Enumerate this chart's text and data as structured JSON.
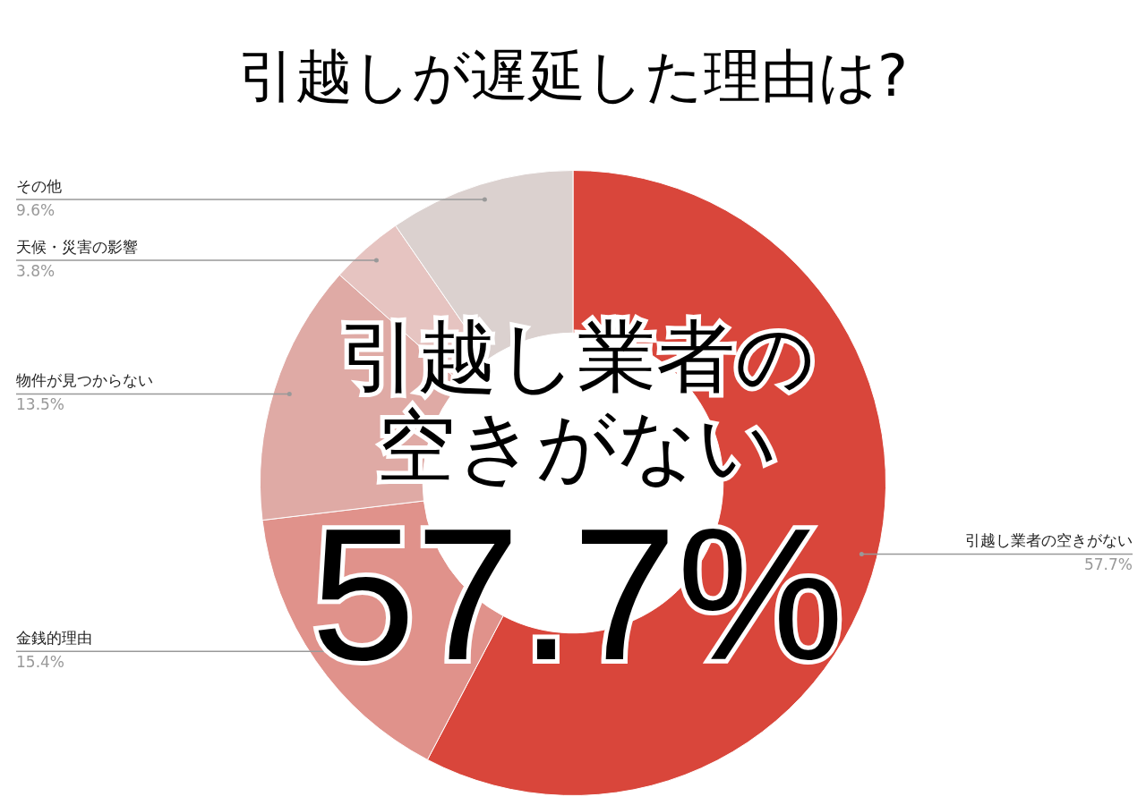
{
  "chart_data": {
    "type": "donut",
    "title": "引越しが遅延した理由は?",
    "categories": [
      "引越し業者の空きがない",
      "金銭的理由",
      "物件が見つからない",
      "天候・災害の影響",
      "その他"
    ],
    "values": [
      57.7,
      15.4,
      13.5,
      3.8,
      9.6
    ],
    "value_labels": [
      "57.7%",
      "15.4%",
      "13.5%",
      "3.8%",
      "9.6%"
    ],
    "colors": [
      "#d9463b",
      "#e0928b",
      "#dfaaa5",
      "#e6c4c1",
      "#dbd1cf"
    ],
    "annotations": [
      "引越し業者の",
      "空きがない",
      "57.7%"
    ],
    "legend": false
  }
}
